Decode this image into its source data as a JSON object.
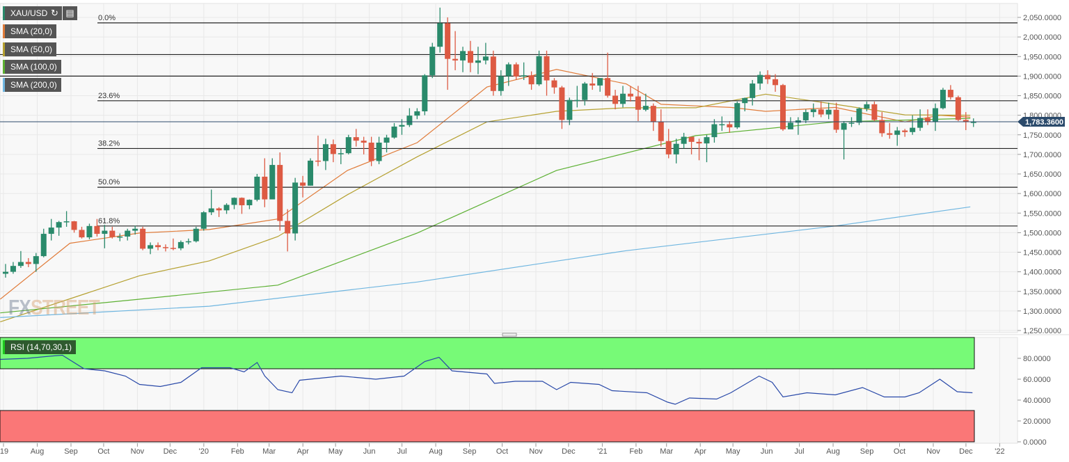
{
  "symbol": "XAU/USD",
  "toolbar": {
    "icons": [
      "refresh-icon",
      "chart-settings-icon"
    ]
  },
  "indicators": [
    {
      "label": "SMA (20,0)",
      "color": "#e07b39"
    },
    {
      "label": "SMA (50,0)",
      "color": "#b5a030"
    },
    {
      "label": "SMA (100,0)",
      "color": "#5cb032"
    },
    {
      "label": "SMA (200,0)",
      "color": "#6fb6e0"
    }
  ],
  "rsi_label": "RSI (14,70,30,1)",
  "watermark": "FXSTREET",
  "colors": {
    "up": "#2a8a6b",
    "down": "#dd5a43",
    "price_tag": "#2b4a6b",
    "rsi_line": "#2848a8",
    "overbought": "#77fa77",
    "oversold": "#fa7777"
  },
  "chart_data": {
    "type": "candlestick",
    "interval": "weekly",
    "start_week": "2019-07-01",
    "first_open": 1395,
    "candles_hlc": [
      [
        1420,
        1385,
        1400
      ],
      [
        1425,
        1395,
        1415
      ],
      [
        1453,
        1410,
        1425
      ],
      [
        1435,
        1412,
        1420
      ],
      [
        1448,
        1400,
        1440
      ],
      [
        1510,
        1437,
        1497
      ],
      [
        1535,
        1480,
        1513
      ],
      [
        1530,
        1492,
        1527
      ],
      [
        1555,
        1515,
        1529
      ],
      [
        1530,
        1500,
        1507
      ],
      [
        1515,
        1485,
        1488
      ],
      [
        1523,
        1483,
        1517
      ],
      [
        1535,
        1490,
        1497
      ],
      [
        1520,
        1460,
        1505
      ],
      [
        1515,
        1485,
        1489
      ],
      [
        1498,
        1478,
        1490
      ],
      [
        1510,
        1480,
        1505
      ],
      [
        1518,
        1495,
        1510
      ],
      [
        1515,
        1455,
        1459
      ],
      [
        1475,
        1445,
        1468
      ],
      [
        1475,
        1455,
        1463
      ],
      [
        1470,
        1452,
        1461
      ],
      [
        1485,
        1455,
        1460
      ],
      [
        1480,
        1455,
        1476
      ],
      [
        1485,
        1470,
        1478
      ],
      [
        1515,
        1475,
        1510
      ],
      [
        1555,
        1505,
        1552
      ],
      [
        1610,
        1545,
        1562
      ],
      [
        1565,
        1540,
        1557
      ],
      [
        1575,
        1548,
        1571
      ],
      [
        1590,
        1560,
        1589
      ],
      [
        1590,
        1548,
        1570
      ],
      [
        1585,
        1560,
        1584
      ],
      [
        1650,
        1580,
        1643
      ],
      [
        1690,
        1565,
        1585
      ],
      [
        1690,
        1590,
        1673
      ],
      [
        1705,
        1505,
        1530
      ],
      [
        1560,
        1452,
        1498
      ],
      [
        1640,
        1480,
        1628
      ],
      [
        1645,
        1590,
        1620
      ],
      [
        1690,
        1620,
        1684
      ],
      [
        1748,
        1670,
        1683
      ],
      [
        1740,
        1660,
        1726
      ],
      [
        1738,
        1680,
        1701
      ],
      [
        1715,
        1675,
        1703
      ],
      [
        1750,
        1700,
        1744
      ],
      [
        1765,
        1720,
        1735
      ],
      [
        1745,
        1700,
        1730
      ],
      [
        1745,
        1670,
        1683
      ],
      [
        1745,
        1675,
        1730
      ],
      [
        1750,
        1705,
        1743
      ],
      [
        1780,
        1740,
        1771
      ],
      [
        1790,
        1750,
        1775
      ],
      [
        1818,
        1770,
        1799
      ],
      [
        1818,
        1790,
        1810
      ],
      [
        1905,
        1800,
        1902
      ],
      [
        1985,
        1895,
        1975
      ],
      [
        2075,
        1960,
        2035
      ],
      [
        2050,
        1865,
        1944
      ],
      [
        2015,
        1915,
        1940
      ],
      [
        1975,
        1910,
        1964
      ],
      [
        1990,
        1910,
        1934
      ],
      [
        1975,
        1905,
        1940
      ],
      [
        1985,
        1930,
        1950
      ],
      [
        1965,
        1850,
        1862
      ],
      [
        1915,
        1850,
        1900
      ],
      [
        1935,
        1875,
        1930
      ],
      [
        1935,
        1890,
        1899
      ],
      [
        1935,
        1890,
        1902
      ],
      [
        1912,
        1865,
        1879
      ],
      [
        1965,
        1875,
        1951
      ],
      [
        1965,
        1850,
        1889
      ],
      [
        1895,
        1855,
        1871
      ],
      [
        1875,
        1765,
        1788
      ],
      [
        1845,
        1775,
        1839
      ],
      [
        1875,
        1820,
        1839
      ],
      [
        1885,
        1825,
        1881
      ],
      [
        1908,
        1865,
        1876
      ],
      [
        1890,
        1860,
        1895
      ],
      [
        1960,
        1845,
        1850
      ],
      [
        1865,
        1815,
        1829
      ],
      [
        1875,
        1820,
        1855
      ],
      [
        1875,
        1835,
        1848
      ],
      [
        1875,
        1785,
        1814
      ],
      [
        1855,
        1810,
        1824
      ],
      [
        1830,
        1760,
        1784
      ],
      [
        1815,
        1720,
        1734
      ],
      [
        1765,
        1690,
        1700
      ],
      [
        1740,
        1677,
        1727
      ],
      [
        1755,
        1715,
        1745
      ],
      [
        1740,
        1700,
        1732
      ],
      [
        1740,
        1685,
        1728
      ],
      [
        1750,
        1680,
        1744
      ],
      [
        1790,
        1730,
        1777
      ],
      [
        1797,
        1760,
        1777
      ],
      [
        1785,
        1755,
        1769
      ],
      [
        1835,
        1765,
        1831
      ],
      [
        1845,
        1810,
        1844
      ],
      [
        1890,
        1825,
        1881
      ],
      [
        1912,
        1865,
        1903
      ],
      [
        1915,
        1880,
        1892
      ],
      [
        1905,
        1860,
        1877
      ],
      [
        1880,
        1760,
        1764
      ],
      [
        1795,
        1765,
        1781
      ],
      [
        1795,
        1750,
        1787
      ],
      [
        1815,
        1780,
        1808
      ],
      [
        1830,
        1795,
        1815
      ],
      [
        1835,
        1795,
        1802
      ],
      [
        1832,
        1790,
        1814
      ],
      [
        1832,
        1755,
        1763
      ],
      [
        1785,
        1687,
        1780
      ],
      [
        1795,
        1770,
        1781
      ],
      [
        1820,
        1775,
        1817
      ],
      [
        1835,
        1810,
        1828
      ],
      [
        1835,
        1785,
        1788
      ],
      [
        1808,
        1745,
        1754
      ],
      [
        1780,
        1740,
        1750
      ],
      [
        1770,
        1722,
        1761
      ],
      [
        1765,
        1745,
        1757
      ],
      [
        1800,
        1750,
        1768
      ],
      [
        1815,
        1760,
        1793
      ],
      [
        1815,
        1775,
        1783
      ],
      [
        1830,
        1760,
        1818
      ],
      [
        1870,
        1815,
        1865
      ],
      [
        1877,
        1840,
        1846
      ],
      [
        1850,
        1785,
        1788
      ],
      [
        1808,
        1762,
        1783
      ],
      [
        1792,
        1770,
        1783
      ]
    ],
    "sma": {
      "SMA (20,0)": [
        [
          "2019-06-28",
          1330
        ],
        [
          "2019-08-31",
          1473
        ],
        [
          "2019-11-03",
          1499
        ],
        [
          "2020-01-06",
          1508
        ],
        [
          "2020-03-09",
          1535
        ],
        [
          "2020-05-12",
          1659
        ],
        [
          "2020-07-15",
          1730
        ],
        [
          "2020-09-17",
          1872
        ],
        [
          "2020-11-20",
          1917
        ],
        [
          "2021-01-23",
          1880
        ],
        [
          "2021-02-24",
          1828
        ],
        [
          "2021-04-29",
          1820
        ],
        [
          "2021-05-31",
          1810
        ],
        [
          "2021-08-03",
          1820
        ],
        [
          "2021-10-06",
          1783
        ],
        [
          "2021-11-07",
          1800
        ],
        [
          "2021-12-05",
          1795
        ]
      ],
      "SMA (50,0)": [
        [
          "2019-06-28",
          1272
        ],
        [
          "2019-11-03",
          1390
        ],
        [
          "2020-01-06",
          1428
        ],
        [
          "2020-03-09",
          1490
        ],
        [
          "2020-05-12",
          1597
        ],
        [
          "2020-07-15",
          1694
        ],
        [
          "2020-09-17",
          1783
        ],
        [
          "2020-11-20",
          1810
        ],
        [
          "2021-01-23",
          1819
        ],
        [
          "2021-03-28",
          1819
        ],
        [
          "2021-05-31",
          1854
        ],
        [
          "2021-08-03",
          1828
        ],
        [
          "2021-10-06",
          1801
        ],
        [
          "2021-12-05",
          1800
        ]
      ],
      "SMA (100,0)": [
        [
          "2019-06-28",
          1295
        ],
        [
          "2019-11-03",
          1330
        ],
        [
          "2020-03-09",
          1366
        ],
        [
          "2020-07-15",
          1499
        ],
        [
          "2020-11-20",
          1659
        ],
        [
          "2021-03-28",
          1748
        ],
        [
          "2021-08-03",
          1783
        ],
        [
          "2021-12-05",
          1792
        ]
      ],
      "SMA (200,0)": [
        [
          "2019-06-28",
          1283
        ],
        [
          "2020-01-06",
          1312
        ],
        [
          "2020-07-15",
          1374
        ],
        [
          "2021-01-23",
          1454
        ],
        [
          "2021-08-03",
          1517
        ],
        [
          "2021-12-05",
          1566
        ]
      ]
    },
    "fibonacci": [
      {
        "label": "0.0%",
        "value": 2036
      },
      {
        "label": "23.6%",
        "value": 1837
      },
      {
        "label": "38.2%",
        "value": 1715
      },
      {
        "label": "50.0%",
        "value": 1616
      },
      {
        "label": "61.8%",
        "value": 1517
      }
    ],
    "horizontal_lines": [
      1955,
      1900
    ],
    "last_price": 1783.36,
    "last_price_label": "1,783.3600",
    "y_range": [
      1250,
      2050
    ],
    "y_ticks": [
      "2,050.0000",
      "2,000.0000",
      "1,950.0000",
      "1,900.0000",
      "1,850.0000",
      "1,800.0000",
      "1,750.0000",
      "1,700.0000",
      "1,650.0000",
      "1,600.0000",
      "1,550.0000",
      "1,500.0000",
      "1,450.0000",
      "1,400.0000",
      "1,350.0000",
      "1,300.0000",
      "1,250.0000"
    ],
    "x_ticks": [
      [
        "'19",
        "2019-07-01"
      ],
      [
        "Aug",
        "2019-08-01"
      ],
      [
        "Sep",
        "2019-09-01"
      ],
      [
        "Oct",
        "2019-10-01"
      ],
      [
        "Nov",
        "2019-11-01"
      ],
      [
        "Dec",
        "2019-12-01"
      ],
      [
        "'20",
        "2020-01-01"
      ],
      [
        "Feb",
        "2020-02-01"
      ],
      [
        "Mar",
        "2020-03-01"
      ],
      [
        "Apr",
        "2020-04-01"
      ],
      [
        "May",
        "2020-05-01"
      ],
      [
        "Jun",
        "2020-06-01"
      ],
      [
        "Jul",
        "2020-07-01"
      ],
      [
        "Aug",
        "2020-08-01"
      ],
      [
        "Sep",
        "2020-09-01"
      ],
      [
        "Oct",
        "2020-10-01"
      ],
      [
        "Nov",
        "2020-11-01"
      ],
      [
        "Dec",
        "2020-12-01"
      ],
      [
        "'21",
        "2021-01-01"
      ],
      [
        "Feb",
        "2021-02-01"
      ],
      [
        "Mar",
        "2021-03-01"
      ],
      [
        "Apr",
        "2021-04-01"
      ],
      [
        "May",
        "2021-05-01"
      ],
      [
        "Jun",
        "2021-06-01"
      ],
      [
        "Jul",
        "2021-07-01"
      ],
      [
        "Aug",
        "2021-08-01"
      ],
      [
        "Sep",
        "2021-09-01"
      ],
      [
        "Oct",
        "2021-10-01"
      ],
      [
        "Nov",
        "2021-11-01"
      ],
      [
        "Dec",
        "2021-12-01"
      ],
      [
        "'22",
        "2022-01-01"
      ]
    ],
    "rsi": {
      "range": [
        0,
        100
      ],
      "overbought": 70,
      "oversold": 30,
      "ticks": [
        [
          "80.0000",
          80
        ],
        [
          "60.0000",
          60
        ],
        [
          "40.0000",
          40
        ],
        [
          "20.0000",
          20
        ],
        [
          "0.0000",
          0
        ]
      ],
      "points": [
        [
          "2019-06-28",
          79
        ],
        [
          "2019-07-23",
          80
        ],
        [
          "2019-08-12",
          82
        ],
        [
          "2019-08-24",
          83
        ],
        [
          "2019-09-13",
          70
        ],
        [
          "2019-10-02",
          68
        ],
        [
          "2019-10-21",
          63
        ],
        [
          "2019-11-03",
          55
        ],
        [
          "2019-11-22",
          53
        ],
        [
          "2019-12-11",
          57
        ],
        [
          "2019-12-30",
          71
        ],
        [
          "2020-01-25",
          71
        ],
        [
          "2020-02-07",
          67
        ],
        [
          "2020-02-19",
          76
        ],
        [
          "2020-02-26",
          63
        ],
        [
          "2020-03-09",
          50
        ],
        [
          "2020-03-22",
          47
        ],
        [
          "2020-03-29",
          59
        ],
        [
          "2020-04-17",
          61
        ],
        [
          "2020-05-06",
          63
        ],
        [
          "2020-06-07",
          60
        ],
        [
          "2020-07-03",
          63
        ],
        [
          "2020-07-22",
          77
        ],
        [
          "2020-08-04",
          81
        ],
        [
          "2020-08-16",
          68
        ],
        [
          "2020-09-17",
          65
        ],
        [
          "2020-09-24",
          56
        ],
        [
          "2020-10-13",
          58
        ],
        [
          "2020-11-07",
          58
        ],
        [
          "2020-11-20",
          50
        ],
        [
          "2020-12-03",
          57
        ],
        [
          "2020-12-29",
          55
        ],
        [
          "2021-01-10",
          49
        ],
        [
          "2021-02-11",
          47
        ],
        [
          "2021-03-02",
          38
        ],
        [
          "2021-03-09",
          36
        ],
        [
          "2021-03-22",
          42
        ],
        [
          "2021-04-16",
          41
        ],
        [
          "2021-04-29",
          47
        ],
        [
          "2021-05-25",
          63
        ],
        [
          "2021-06-06",
          57
        ],
        [
          "2021-06-16",
          43
        ],
        [
          "2021-07-08",
          47
        ],
        [
          "2021-08-03",
          45
        ],
        [
          "2021-08-28",
          52
        ],
        [
          "2021-09-17",
          43
        ],
        [
          "2021-10-06",
          43
        ],
        [
          "2021-10-19",
          47
        ],
        [
          "2021-11-07",
          60
        ],
        [
          "2021-11-23",
          48
        ],
        [
          "2021-12-07",
          47
        ]
      ]
    }
  }
}
